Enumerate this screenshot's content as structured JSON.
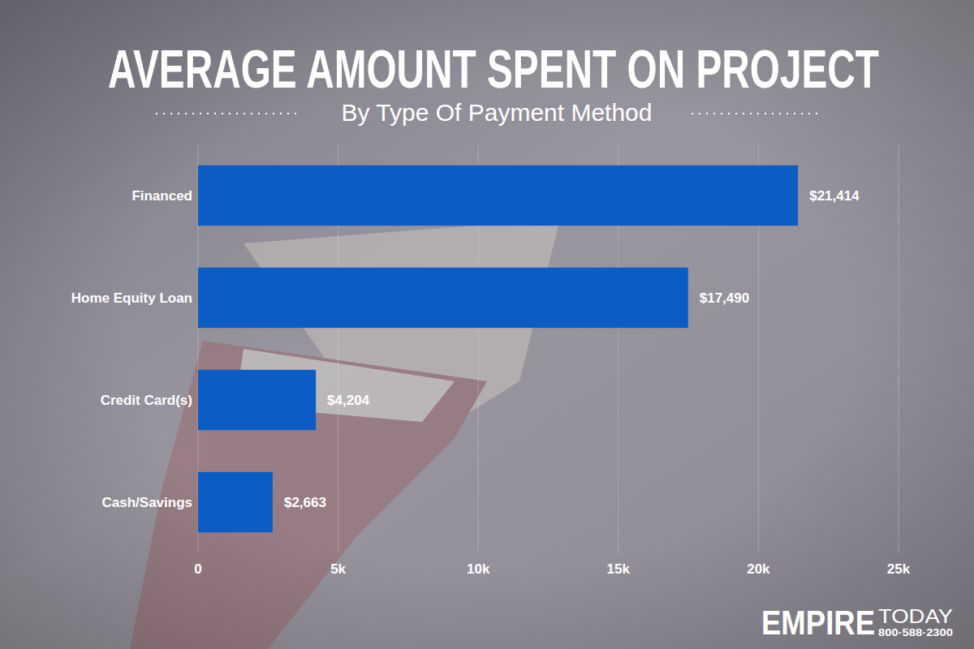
{
  "chart_data": {
    "type": "bar",
    "title": "AVERAGE AMOUNT SPENT ON PROJECT",
    "subtitle": "By Type Of Payment Method",
    "orientation": "horizontal",
    "categories": [
      "Financed",
      "Home Equity Loan",
      "Credit Card(s)",
      "Cash/Savings"
    ],
    "values": [
      21414,
      17490,
      4204,
      2663
    ],
    "value_labels": [
      "$21,414",
      "$17,490",
      "$4,204",
      "$2,663"
    ],
    "data_labels": true,
    "color": "#0b5cc4",
    "xlim": [
      0,
      25000
    ],
    "xticks": [
      0,
      {
        "value": 5000,
        "label": "5k"
      },
      {
        "value": 10000,
        "label": "10k"
      },
      {
        "value": 15000,
        "label": "15k"
      },
      {
        "value": 20000,
        "label": "20k"
      },
      {
        "value": 25000,
        "label": "25k"
      }
    ],
    "grid": true,
    "annotations": [
      "EMPIRE",
      "TODAY",
      "800·588·2300"
    ]
  }
}
